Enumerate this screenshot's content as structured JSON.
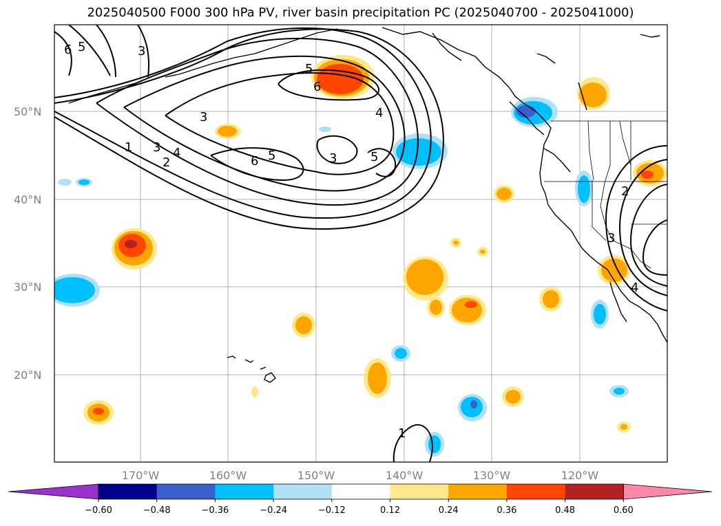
{
  "title": "2025040500 F000 300 hPa PV, river basin precipitation PC (2025040700 - 2025041000)",
  "map": {
    "lat_labels": [
      "50°N",
      "40°N",
      "30°N",
      "20°N"
    ],
    "lon_labels": [
      "170°W",
      "160°W",
      "150°W",
      "140°W",
      "130°W",
      "120°W"
    ],
    "contour_labels": [
      "1",
      "2",
      "3",
      "4",
      "5",
      "6"
    ]
  },
  "colorbar": {
    "ticks": [
      "−0.60",
      "−0.48",
      "−0.36",
      "−0.24",
      "−0.12",
      "0.12",
      "0.24",
      "0.36",
      "0.48",
      "0.60"
    ],
    "colors": [
      "#9932cc",
      "#00008b",
      "#3a5fcd",
      "#00bfff",
      "#b0e0f8",
      "#ffffff",
      "#ffe88a",
      "#ffa500",
      "#ff4500",
      "#b22222",
      "#ff88aa"
    ]
  }
}
